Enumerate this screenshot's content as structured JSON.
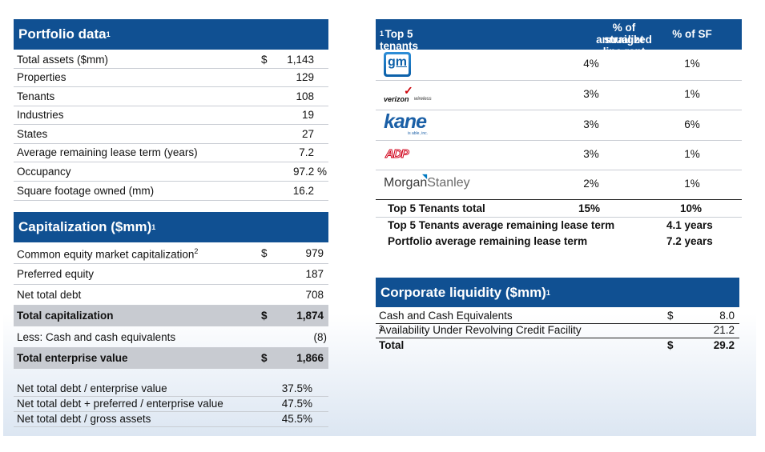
{
  "portfolio": {
    "title": "Portfolio data",
    "title_note": "1",
    "rows": [
      {
        "label": "Total assets ($mm)",
        "currency": "$",
        "value": "1,143"
      },
      {
        "label": "Properties",
        "currency": "",
        "value": "129"
      },
      {
        "label": "Tenants",
        "currency": "",
        "value": "108"
      },
      {
        "label": "Industries",
        "currency": "",
        "value": "19"
      },
      {
        "label": "States",
        "currency": "",
        "value": "27"
      },
      {
        "label": "Average remaining lease term (years)",
        "currency": "",
        "value": "7.2"
      },
      {
        "label": "Occupancy",
        "currency": "",
        "value": "97.2 %"
      },
      {
        "label": "Square footage owned (mm)",
        "currency": "",
        "value": "16.2"
      }
    ]
  },
  "capitalization": {
    "title": "Capitalization ($mm)",
    "title_note": "1",
    "rows": [
      {
        "label": "Common equity market capitalization",
        "note": "2",
        "currency": "$",
        "value": "979"
      },
      {
        "label": "Preferred equity",
        "note": "",
        "currency": "",
        "value": "187"
      },
      {
        "label": "Net total debt",
        "note": "",
        "currency": "",
        "value": "708"
      },
      {
        "label": "Total capitalization",
        "note": "",
        "currency": "$",
        "value": "1,874"
      },
      {
        "label": "Less: Cash and cash equivalents",
        "note": "",
        "currency": "",
        "value": "(8)"
      },
      {
        "label": "Total enterprise value",
        "note": "",
        "currency": "$",
        "value": "1,866"
      }
    ],
    "ratios": [
      {
        "label": "Net total debt / enterprise value",
        "value": "37.5%"
      },
      {
        "label": "Net total debt + preferred / enterprise value",
        "value": "47.5%"
      },
      {
        "label": "Net total debt / gross assets",
        "value": "45.5%"
      }
    ]
  },
  "tenants": {
    "title": "Top 5 tenants",
    "title_note": "1",
    "col_rent_line1": "% of annualized",
    "col_rent_line2": "straight line rent",
    "col_sf": "% of SF",
    "rows": [
      {
        "logo": "gm",
        "logo_text": "gm",
        "rent": "4%",
        "sf": "1%"
      },
      {
        "logo": "verizon-wireless",
        "logo_text": "verizon",
        "logo_sub": "wireless",
        "rent": "3%",
        "sf": "1%"
      },
      {
        "logo": "kane",
        "logo_text": "kane",
        "logo_sub": "is able, inc.",
        "rent": "3%",
        "sf": "6%"
      },
      {
        "logo": "adp",
        "logo_text": "ADP",
        "rent": "3%",
        "sf": "1%"
      },
      {
        "logo": "morgan-stanley",
        "logo_text_a": "Morgan",
        "logo_text_b": "Stanley",
        "rent": "2%",
        "sf": "1%"
      }
    ],
    "total": {
      "label": "Top 5 Tenants total",
      "rent": "15%",
      "sf": "10%"
    },
    "avg_top5": {
      "label": "Top 5 Tenants average remaining lease term",
      "value": "4.1 years"
    },
    "avg_portfolio": {
      "label": "Portfolio average remaining lease term",
      "value": "7.2 years"
    }
  },
  "liquidity": {
    "title": "Corporate liquidity ($mm)",
    "title_note": "1",
    "rows": [
      {
        "label": "Cash and Cash Equivalents",
        "note": "",
        "currency": "$",
        "value": "8.0"
      },
      {
        "label": "Availability Under Revolving Credit Facility",
        "note": "3",
        "currency": "",
        "value": "21.2"
      },
      {
        "label": "Total",
        "note": "",
        "currency": "$",
        "value": "29.2"
      }
    ]
  },
  "colors": {
    "header_blue": "#105092",
    "total_shade": "#c8cbd1"
  }
}
